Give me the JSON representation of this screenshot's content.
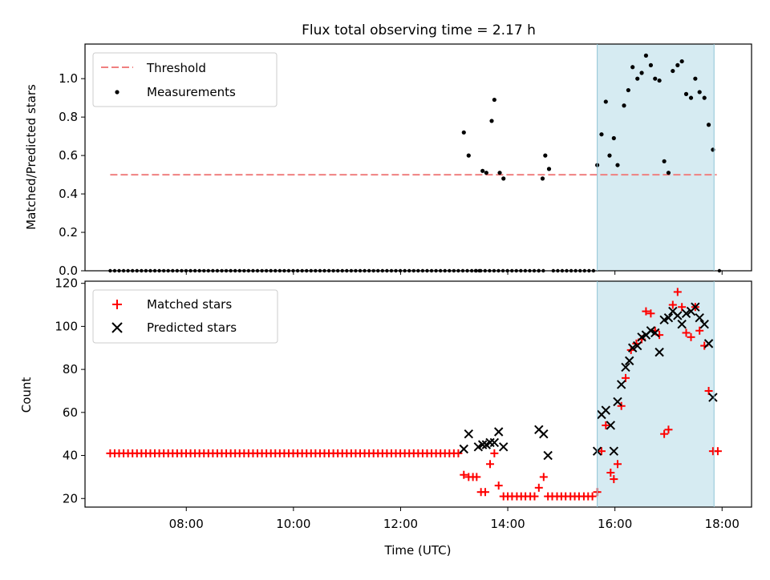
{
  "chart_data": [
    {
      "type": "scatter",
      "title": "Flux total observing time = 2.17 h",
      "ylabel": "Matched/Predicted stars",
      "xlabel": "",
      "ylim": [
        0,
        1.18
      ],
      "yticks": [
        0.0,
        0.2,
        0.4,
        0.6,
        0.8,
        1.0
      ],
      "ytick_labels": [
        "0.0",
        "0.2",
        "0.4",
        "0.6",
        "0.8",
        "1.0"
      ],
      "xlim_hours": [
        6.11,
        18.55
      ],
      "shaded_region_hours": [
        15.67,
        17.85
      ],
      "shaded_color": "#add8e6",
      "legend_position": "top-left",
      "threshold": {
        "name": "Threshold",
        "value": 0.5,
        "x_range_hours": [
          6.58,
          17.9
        ],
        "color": "#f08080"
      },
      "series": [
        {
          "name": "Measurements",
          "color": "#000000",
          "points": [
            [
              13.18,
              0.72
            ],
            [
              13.27,
              0.6
            ],
            [
              13.53,
              0.52
            ],
            [
              13.6,
              0.51
            ],
            [
              13.7,
              0.78
            ],
            [
              13.75,
              0.89
            ],
            [
              13.85,
              0.51
            ],
            [
              13.92,
              0.48
            ],
            [
              14.65,
              0.48
            ],
            [
              14.7,
              0.6
            ],
            [
              14.77,
              0.53
            ],
            [
              15.67,
              0.55
            ],
            [
              15.75,
              0.71
            ],
            [
              15.83,
              0.88
            ],
            [
              15.9,
              0.6
            ],
            [
              15.98,
              0.69
            ],
            [
              16.05,
              0.55
            ],
            [
              16.17,
              0.86
            ],
            [
              16.25,
              0.94
            ],
            [
              16.33,
              1.06
            ],
            [
              16.42,
              1.0
            ],
            [
              16.5,
              1.03
            ],
            [
              16.58,
              1.12
            ],
            [
              16.67,
              1.07
            ],
            [
              16.75,
              1.0
            ],
            [
              16.83,
              0.99
            ],
            [
              16.92,
              0.57
            ],
            [
              17.0,
              0.51
            ],
            [
              17.08,
              1.04
            ],
            [
              17.17,
              1.07
            ],
            [
              17.25,
              1.09
            ],
            [
              17.33,
              0.92
            ],
            [
              17.42,
              0.9
            ],
            [
              17.5,
              1.0
            ],
            [
              17.58,
              0.93
            ],
            [
              17.67,
              0.9
            ],
            [
              17.75,
              0.76
            ],
            [
              17.83,
              0.63
            ]
          ],
          "zero_points": [
            [
              6.58,
              14.6
            ],
            [
              14.58,
              14.7
            ],
            [
              14.85,
              15.63
            ]
          ],
          "zero_extra_hours": [
            13.4,
            13.47,
            17.95
          ]
        }
      ]
    },
    {
      "type": "scatter",
      "ylabel": "Count",
      "xlabel": "Time (UTC)",
      "ylim": [
        16,
        121
      ],
      "yticks": [
        20,
        40,
        60,
        80,
        100,
        120
      ],
      "ytick_labels": [
        "20",
        "40",
        "60",
        "80",
        "100",
        "120"
      ],
      "xlim_hours": [
        6.11,
        18.55
      ],
      "xticks_hours": [
        8,
        10,
        12,
        14,
        16,
        18
      ],
      "xtick_labels": [
        "08:00",
        "10:00",
        "12:00",
        "14:00",
        "16:00",
        "18:00"
      ],
      "shaded_region_hours": [
        15.67,
        17.85
      ],
      "legend_position": "top-left",
      "series": [
        {
          "name": "Matched stars",
          "color": "#ff0000",
          "marker": "plus",
          "flat_run": {
            "from": 6.58,
            "to": 13.1,
            "step": 0.0833,
            "value": 41
          },
          "points": [
            [
              13.18,
              31
            ],
            [
              13.27,
              30
            ],
            [
              13.35,
              30
            ],
            [
              13.42,
              30
            ],
            [
              13.5,
              23
            ],
            [
              13.58,
              23
            ],
            [
              13.67,
              36
            ],
            [
              13.75,
              41
            ],
            [
              13.83,
              26
            ],
            [
              13.92,
              21
            ],
            [
              14.0,
              21
            ],
            [
              14.08,
              21
            ],
            [
              14.17,
              21
            ],
            [
              14.25,
              21
            ],
            [
              14.33,
              21
            ],
            [
              14.42,
              21
            ],
            [
              14.5,
              21
            ],
            [
              14.58,
              25
            ],
            [
              14.67,
              30
            ],
            [
              14.75,
              21
            ],
            [
              14.83,
              21
            ],
            [
              14.92,
              21
            ],
            [
              15.0,
              21
            ],
            [
              15.08,
              21
            ],
            [
              15.17,
              21
            ],
            [
              15.25,
              21
            ],
            [
              15.33,
              21
            ],
            [
              15.42,
              21
            ],
            [
              15.5,
              21
            ],
            [
              15.58,
              21
            ],
            [
              15.67,
              23
            ],
            [
              15.75,
              42
            ],
            [
              15.83,
              54
            ],
            [
              15.92,
              32
            ],
            [
              15.98,
              29
            ],
            [
              16.05,
              36
            ],
            [
              16.12,
              63
            ],
            [
              16.2,
              76
            ],
            [
              16.3,
              89
            ],
            [
              16.4,
              92
            ],
            [
              16.5,
              94
            ],
            [
              16.58,
              107
            ],
            [
              16.67,
              106
            ],
            [
              16.75,
              98
            ],
            [
              16.83,
              96
            ],
            [
              16.92,
              50
            ],
            [
              17.0,
              52
            ],
            [
              17.08,
              110
            ],
            [
              17.17,
              116
            ],
            [
              17.25,
              109
            ],
            [
              17.33,
              97
            ],
            [
              17.42,
              95
            ],
            [
              17.5,
              109
            ],
            [
              17.58,
              98
            ],
            [
              17.67,
              91
            ],
            [
              17.75,
              70
            ],
            [
              17.83,
              42
            ],
            [
              17.92,
              42
            ]
          ]
        },
        {
          "name": "Predicted stars",
          "color": "#000000",
          "marker": "x",
          "points": [
            [
              13.18,
              43
            ],
            [
              13.27,
              50
            ],
            [
              13.45,
              44
            ],
            [
              13.53,
              45
            ],
            [
              13.6,
              45
            ],
            [
              13.67,
              46
            ],
            [
              13.75,
              46
            ],
            [
              13.83,
              51
            ],
            [
              13.92,
              44
            ],
            [
              14.58,
              52
            ],
            [
              14.67,
              50
            ],
            [
              14.75,
              40
            ],
            [
              15.67,
              42
            ],
            [
              15.75,
              59
            ],
            [
              15.83,
              61
            ],
            [
              15.92,
              54
            ],
            [
              15.98,
              42
            ],
            [
              16.05,
              65
            ],
            [
              16.12,
              73
            ],
            [
              16.2,
              81
            ],
            [
              16.27,
              84
            ],
            [
              16.33,
              90
            ],
            [
              16.42,
              91
            ],
            [
              16.5,
              95
            ],
            [
              16.58,
              96
            ],
            [
              16.67,
              98
            ],
            [
              16.75,
              97
            ],
            [
              16.83,
              88
            ],
            [
              16.92,
              103
            ],
            [
              17.0,
              104
            ],
            [
              17.08,
              107
            ],
            [
              17.17,
              105
            ],
            [
              17.25,
              101
            ],
            [
              17.33,
              106
            ],
            [
              17.42,
              107
            ],
            [
              17.5,
              109
            ],
            [
              17.58,
              104
            ],
            [
              17.67,
              101
            ],
            [
              17.75,
              92
            ],
            [
              17.83,
              67
            ]
          ]
        }
      ]
    }
  ]
}
